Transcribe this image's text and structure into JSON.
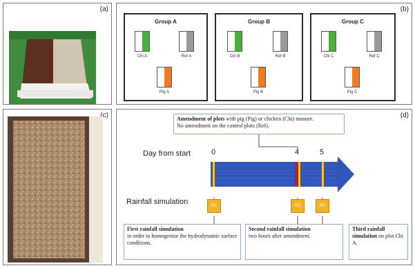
{
  "panels": {
    "a": "(a)",
    "b": "(b)",
    "c": "(c)",
    "d": "(d)"
  },
  "groups": [
    {
      "title": "Group A",
      "chi": "Chi A",
      "ref": "Ref A",
      "pig": "Pig A"
    },
    {
      "title": "Group B",
      "chi": "Chi B",
      "ref": "Ref B",
      "pig": "Pig B"
    },
    {
      "title": "Group C",
      "chi": "Chi C",
      "ref": "Ref C",
      "pig": "Pig C"
    }
  ],
  "colors": {
    "chi": "#4cae3c",
    "ref": "#9a9a9a",
    "pig": "#f07a22",
    "arrow": "#2f56b8",
    "marker_yellow": "#f2c230",
    "marker_red": "#b2242a"
  },
  "timeline": {
    "day_label": "Day from start",
    "days": [
      "0",
      "4",
      "5"
    ],
    "rain_label": "Rainfall simulation",
    "rain_box_text": [
      "R1",
      "R2",
      "R3"
    ]
  },
  "amendment": {
    "bold": "Amendment of plots",
    "rest": " with pig (Pig) or chicken (Chi) manure.",
    "line2": "No amendment on the control plots (Ref)."
  },
  "notes": [
    {
      "bold": "First rainfall simulation",
      "rest": "in order to homogenize the hydrodynamic surface conditions."
    },
    {
      "bold": "Second rainfall simulation",
      "rest": "two hours after amendment."
    },
    {
      "bold": "Third rainfall simulation",
      "rest": "on plot Chi A."
    }
  ]
}
